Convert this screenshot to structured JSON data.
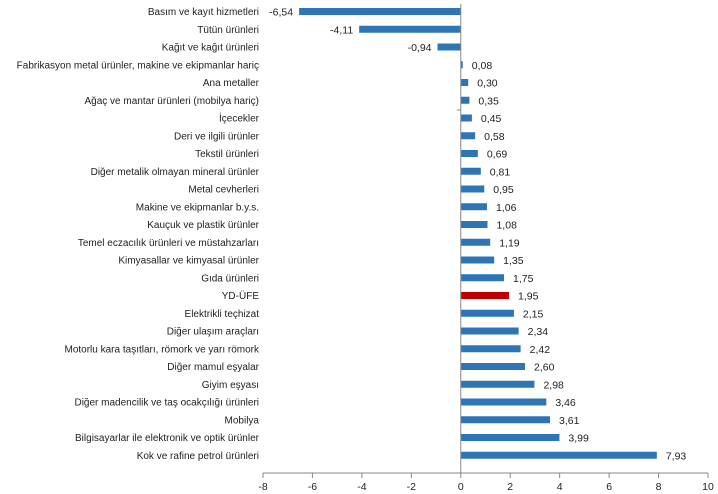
{
  "chart_data": {
    "type": "bar",
    "orientation": "horizontal",
    "title": "",
    "xlabel": "",
    "ylabel": "",
    "xlim": [
      -8,
      10
    ],
    "x_ticks": [
      -8,
      -6,
      -4,
      -2,
      0,
      2,
      4,
      6,
      8,
      10
    ],
    "x_tick_labels": [
      "-8",
      "-6",
      "-4",
      "-2",
      "0",
      "2",
      "4",
      "6",
      "8",
      "10"
    ],
    "grid": false,
    "legend": "none",
    "default_color": "#2e75b6",
    "highlight_color": "#c00000",
    "decimal_separator": ",",
    "categories": [
      "Basım ve kayıt hizmetleri",
      "Tütün ürünleri",
      "Kağıt ve kağıt ürünleri",
      "Fabrikasyon metal ürünler, makine ve ekipmanlar hariç",
      "Ana metaller",
      "Ağaç ve mantar ürünleri (mobilya hariç)",
      "İçecekler",
      "Deri ve ilgili ürünler",
      "Tekstil ürünleri",
      "Diğer metalik olmayan mineral ürünler",
      "Metal cevherleri",
      "Makine ve ekipmanlar b.y.s.",
      "Kauçuk ve plastik ürünler",
      "Temel eczacılık ürünleri ve müstahzarları",
      "Kimyasallar ve kimyasal ürünler",
      "Gıda ürünleri",
      "YD-ÜFE",
      "Elektrikli teçhizat",
      "Diğer ulaşım araçları",
      "Motorlu kara taşıtları, römork ve yarı römork",
      "Diğer mamul eşyalar",
      "Giyim eşyası",
      "Diğer madencilik ve taş ocakçılığı ürünleri",
      "Mobilya",
      "Bilgisayarlar ile elektronik ve optik ürünler",
      "Kok ve rafine petrol ürünleri"
    ],
    "values": [
      -6.54,
      -4.11,
      -0.94,
      0.08,
      0.3,
      0.35,
      0.45,
      0.58,
      0.69,
      0.81,
      0.95,
      1.06,
      1.08,
      1.19,
      1.35,
      1.75,
      1.95,
      2.15,
      2.34,
      2.42,
      2.6,
      2.98,
      3.46,
      3.61,
      3.99,
      7.93
    ],
    "value_labels": [
      "-6,54",
      "-4,11",
      "-0,94",
      "0,08",
      "0,30",
      "0,35",
      "0,45",
      "0,58",
      "0,69",
      "0,81",
      "0,95",
      "1,06",
      "1,08",
      "1,19",
      "1,35",
      "1,75",
      "1,95",
      "2,15",
      "2,34",
      "2,42",
      "2,60",
      "2,98",
      "3,46",
      "3,61",
      "3,99",
      "7,93"
    ],
    "highlight_categories": [
      "YD-ÜFE"
    ]
  }
}
